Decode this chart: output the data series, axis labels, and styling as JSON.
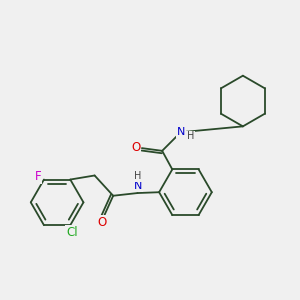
{
  "background_color": "#f0f0f0",
  "bond_color": "#2a4a2a",
  "bond_width": 1.3,
  "atom_colors": {
    "O": "#dd0000",
    "N": "#0000cc",
    "F": "#cc00cc",
    "Cl": "#22aa22",
    "H": "#444444",
    "C": "#2a4a2a"
  },
  "font_size": 8.5,
  "figsize": [
    3.0,
    3.0
  ],
  "dpi": 100
}
